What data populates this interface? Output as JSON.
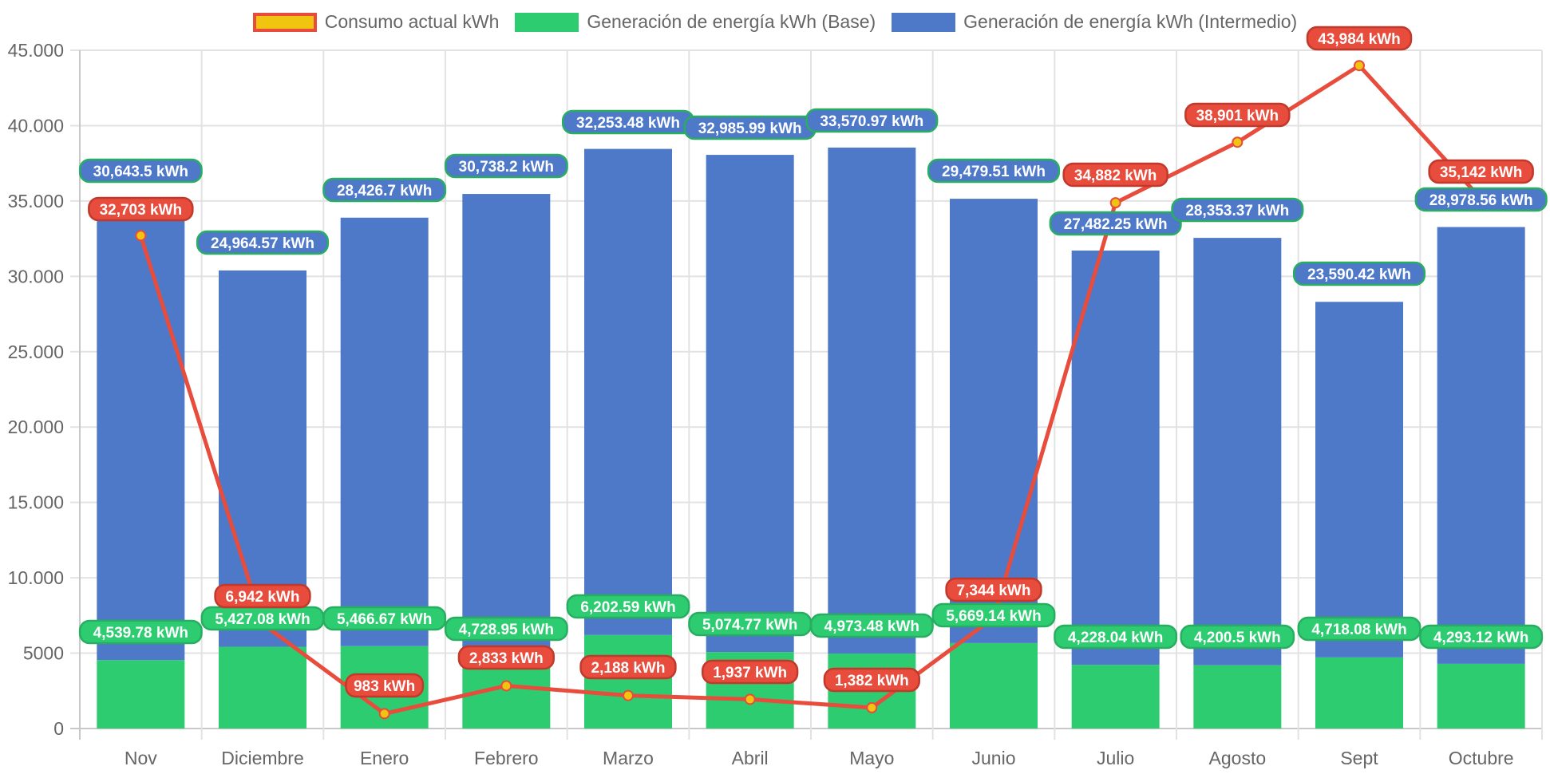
{
  "chart_data": {
    "type": "bar",
    "stacked": true,
    "title": "",
    "xlabel": "",
    "ylabel": "",
    "ylim": [
      0,
      45000
    ],
    "y_ticks": [
      0,
      5000,
      10000,
      15000,
      20000,
      25000,
      30000,
      35000,
      40000,
      45000
    ],
    "y_tick_labels": [
      "0",
      "5000",
      "10.000",
      "15.000",
      "20.000",
      "25.000",
      "30.000",
      "35.000",
      "40.000",
      "45.000"
    ],
    "grid": true,
    "legend_position": "top-center",
    "categories": [
      "Nov",
      "Diciembre",
      "Enero",
      "Febrero",
      "Marzo",
      "Abril",
      "Mayo",
      "Junio",
      "Julio",
      "Agosto",
      "Sept",
      "Octubre"
    ],
    "series": [
      {
        "name": "Consumo actual kWh",
        "type": "line",
        "color": "#e74c3c",
        "point_color": "#f1c40f",
        "values": [
          32703,
          6942,
          983,
          2833,
          2188,
          1937,
          1382,
          7344,
          34882,
          38901,
          43984,
          35142
        ],
        "labels": [
          "32,703 kWh",
          "6,942 kWh",
          "983 kWh",
          "2,833 kWh",
          "2,188 kWh",
          "1,937 kWh",
          "1,382 kWh",
          "7,344 kWh",
          "34,882 kWh",
          "38,901 kWh",
          "43,984 kWh",
          "35,142 kWh"
        ]
      },
      {
        "name": "Generación de energía kWh (Base)",
        "type": "bar",
        "color": "#2ecc71",
        "values": [
          4539.78,
          5427.08,
          5466.67,
          4728.95,
          6202.59,
          5074.77,
          4973.48,
          5669.14,
          4228.04,
          4200.5,
          4718.08,
          4293.12
        ],
        "labels": [
          "4,539.78 kWh",
          "5,427.08 kWh",
          "5,466.67 kWh",
          "4,728.95 kWh",
          "6,202.59 kWh",
          "5,074.77 kWh",
          "4,973.48 kWh",
          "5,669.14 kWh",
          "4,228.04 kWh",
          "4,200.5 kWh",
          "4,718.08 kWh",
          "4,293.12 kWh"
        ]
      },
      {
        "name": "Generación de energía kWh (Intermedio)",
        "type": "bar",
        "color": "#4e79c9",
        "values": [
          30643.5,
          24964.57,
          28426.7,
          30738.2,
          32253.48,
          32985.99,
          33570.97,
          29479.51,
          27482.25,
          28353.37,
          23590.42,
          28978.56
        ],
        "labels": [
          "30,643.5 kWh",
          "24,964.57 kWh",
          "28,426.7 kWh",
          "30,738.2 kWh",
          "32,253.48 kWh",
          "32,985.99 kWh",
          "33,570.97 kWh",
          "29,479.51 kWh",
          "27,482.25 kWh",
          "28,353.37 kWh",
          "23,590.42 kWh",
          "28,978.56 kWh"
        ]
      }
    ]
  },
  "legend": {
    "items": [
      {
        "label": "Consumo actual kWh"
      },
      {
        "label": "Generación de energía kWh (Base)"
      },
      {
        "label": "Generación de energía kWh (Intermedio)"
      }
    ]
  }
}
